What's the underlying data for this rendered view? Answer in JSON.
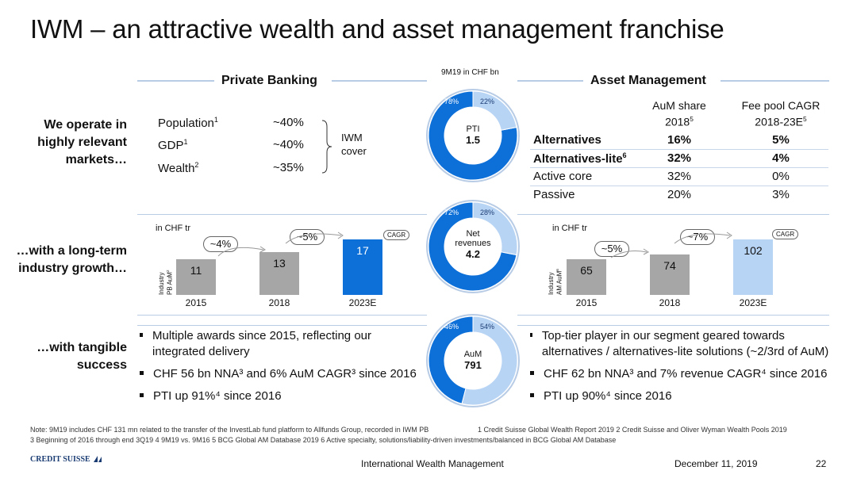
{
  "title": "IWM – an attractive wealth and asset management franchise",
  "center_caption": "9M19 in CHF bn",
  "private_banking": {
    "header": "Private Banking",
    "rows": [
      {
        "label": "Population",
        "sup": "1",
        "value": "~40%"
      },
      {
        "label": "GDP",
        "sup": "1",
        "value": "~40%"
      },
      {
        "label": "Wealth",
        "sup": "2",
        "value": "~35%"
      }
    ],
    "iwm_cover_line1": "IWM",
    "iwm_cover_line2": "cover",
    "unit": "in CHF tr",
    "axis_label_line1": "Industry",
    "axis_label_line2": "PB AuM",
    "axis_label_sup": "2",
    "cagr_tag": "CAGR",
    "growth1": "~4%",
    "growth2": "~5%",
    "bullets": [
      "Multiple awards since 2015, reflecting our integrated delivery",
      "CHF 56 bn NNA³ and 6% AuM CAGR³ since 2016",
      "PTI up 91%⁴ since 2016"
    ]
  },
  "asset_management": {
    "header": "Asset Management",
    "col1_line1": "AuM share",
    "col1_line2": "2018",
    "col1_sup": "5",
    "col2_line1": "Fee pool CAGR",
    "col2_line2": "2018-23E",
    "col2_sup": "5",
    "rows": [
      {
        "label": "Alternatives",
        "sup": "",
        "share": "16%",
        "cagr": "5%",
        "bold": true
      },
      {
        "label": "Alternatives-lite",
        "sup": "6",
        "share": "32%",
        "cagr": "4%",
        "bold": true
      },
      {
        "label": "Active core",
        "sup": "",
        "share": "32%",
        "cagr": "0%",
        "bold": false
      },
      {
        "label": "Passive",
        "sup": "",
        "share": "20%",
        "cagr": "3%",
        "bold": false
      }
    ],
    "unit": "in CHF tr",
    "axis_label_line1": "Industry",
    "axis_label_line2": "AM AuM",
    "axis_label_sup": "6",
    "cagr_tag": "CAGR",
    "growth1": "~5%",
    "growth2": "~7%",
    "bullets": [
      "Top-tier player in our segment geared towards alternatives / alternatives-lite solutions (~2/3rd of AuM)",
      "CHF 62 bn NNA³ and 7% revenue CAGR⁴ since 2016",
      "PTI up 90%⁴ since 2016"
    ]
  },
  "row_labels": {
    "row1": "We operate in highly relevant markets…",
    "row2": "…with a long-term industry growth…",
    "row3": "…with tangible success"
  },
  "chart_data": [
    {
      "type": "bar",
      "categories": [
        "2015",
        "2018",
        "2023E"
      ],
      "values": [
        11,
        13,
        17
      ],
      "ylabel": "Industry PB AuM",
      "unit": "in CHF tr",
      "colors": [
        "#a6a6a6",
        "#a6a6a6",
        "#0d6fd8"
      ]
    },
    {
      "type": "bar",
      "categories": [
        "2015",
        "2018",
        "2023E"
      ],
      "values": [
        65,
        74,
        102
      ],
      "ylabel": "Industry AM AuM",
      "unit": "in CHF tr",
      "colors": [
        "#a6a6a6",
        "#a6a6a6",
        "#b8d4f5"
      ]
    },
    {
      "type": "pie",
      "label": "PTI",
      "total": "1.5",
      "slices": [
        {
          "label": "78%",
          "value": 78
        },
        {
          "label": "22%",
          "value": 22
        }
      ]
    },
    {
      "type": "pie",
      "label": "Net revenues",
      "total": "4.2",
      "slices": [
        {
          "label": "72%",
          "value": 72
        },
        {
          "label": "28%",
          "value": 28
        }
      ]
    },
    {
      "type": "pie",
      "label": "AuM",
      "total": "791",
      "slices": [
        {
          "label": "46%",
          "value": 46
        },
        {
          "label": "54%",
          "value": 54
        }
      ]
    }
  ],
  "colors": {
    "dark_blue": "#0d6fd8",
    "light_blue": "#b8d4f5",
    "grey": "#a6a6a6",
    "line": "#b8cce6"
  },
  "footnotes": {
    "line1_a": "Note: 9M19 includes CHF 131 mn related to the transfer of the InvestLab fund platform to Allfunds Group, recorded in IWM PB",
    "line1_b": "1 Credit Suisse Global Wealth Report 2019    2 Credit Suisse and Oliver Wyman Wealth Pools 2019",
    "line2": "3 Beginning of 2016 through end 3Q19    4 9M19 vs. 9M16    5 BCG Global AM Database 2019    6 Active specialty, solutions/liability-driven investments/balanced in BCG Global AM Database"
  },
  "footer": {
    "logo_text": "CREDIT SUISSE",
    "center": "International Wealth Management",
    "date": "December 11, 2019",
    "page": "22"
  }
}
